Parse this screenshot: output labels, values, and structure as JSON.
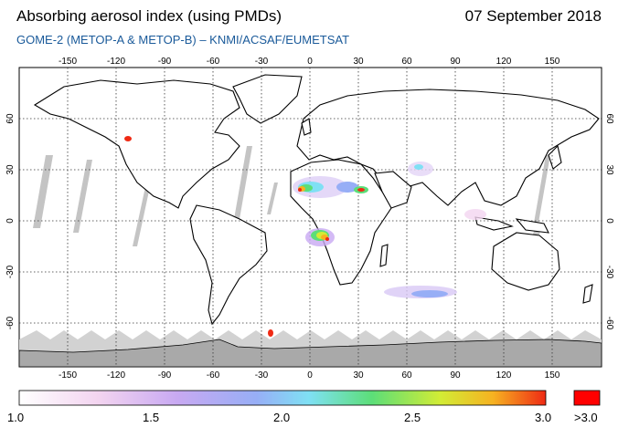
{
  "header": {
    "title": "Absorbing aerosol index (using PMDs)",
    "date": "07 September 2018",
    "subtitle": "GOME-2 (METOP-A & METOP-B)  –  KNMI/ACSAF/EUMETSAT"
  },
  "map": {
    "lon_ticks": [
      "-150",
      "-120",
      "-90",
      "-60",
      "-30",
      "0",
      "30",
      "60",
      "90",
      "120",
      "150"
    ],
    "lat_ticks_left": [
      "60",
      "30",
      "0",
      "-30",
      "-60"
    ],
    "lat_ticks_right": [
      "60",
      "30",
      "0",
      "-30",
      "-60"
    ]
  },
  "colorbar": {
    "labels": [
      "1.0",
      "1.5",
      "2.0",
      "2.5",
      "3.0"
    ],
    "overflow_label": ">3.0",
    "colors": [
      "#ffffff",
      "#f5c6f0",
      "#b9a9f5",
      "#8fb6f7",
      "#7fe8f5",
      "#5fe27a",
      "#b8ea3f",
      "#f7ee2a",
      "#f7a51e",
      "#f03018"
    ],
    "overflow_color": "#ff0000"
  }
}
